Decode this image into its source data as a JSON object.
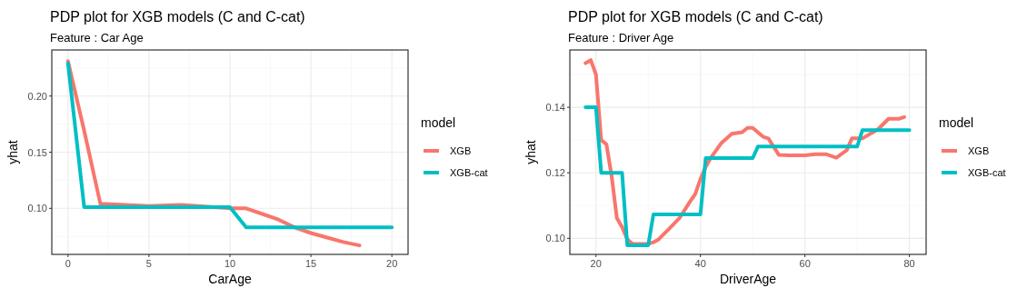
{
  "chart_data": [
    {
      "type": "line",
      "title": "PDP plot for XGB models (C and C-cat)",
      "subtitle": "Feature : Car Age",
      "xlabel": "CarAge",
      "ylabel": "yhat",
      "legend_title": "model",
      "legend": "right",
      "grid": true,
      "line_style": "solid",
      "xlim": [
        -1,
        21
      ],
      "xticks": [
        0,
        5,
        10,
        15,
        20
      ],
      "ylim": [
        0.059,
        0.241
      ],
      "yticks": [
        {
          "value": 0.1,
          "label": "0.10"
        },
        {
          "value": 0.15,
          "label": "0.15"
        },
        {
          "value": 0.2,
          "label": "0.20"
        }
      ],
      "series": [
        {
          "name": "XGB",
          "color": "#f8766d",
          "x": [
            0,
            1,
            2,
            5,
            7,
            9,
            10,
            11,
            12,
            13,
            14,
            15,
            16,
            17,
            18
          ],
          "values": [
            0.231,
            0.169,
            0.104,
            0.102,
            0.103,
            0.101,
            0.1,
            0.1,
            0.095,
            0.09,
            0.083,
            0.078,
            0.074,
            0.07,
            0.067
          ]
        },
        {
          "name": "XGB-cat",
          "color": "#00bfc4",
          "x": [
            0,
            1,
            10,
            11,
            20
          ],
          "values": [
            0.229,
            0.101,
            0.101,
            0.083,
            0.083
          ]
        }
      ]
    },
    {
      "type": "line",
      "title": "PDP plot for XGB models (C and C-cat)",
      "subtitle": "Feature : Driver Age",
      "xlabel": "DriverAge",
      "ylabel": "yhat",
      "legend_title": "model",
      "legend": "right",
      "grid": true,
      "line_style": "solid",
      "xlim": [
        15,
        83.2
      ],
      "xticks": [
        20,
        40,
        60,
        80
      ],
      "ylim": [
        0.0951,
        0.1575
      ],
      "yticks": [
        {
          "value": 0.1,
          "label": "0.10"
        },
        {
          "value": 0.12,
          "label": "0.12"
        },
        {
          "value": 0.14,
          "label": "0.14"
        }
      ],
      "series": [
        {
          "name": "XGB",
          "color": "#f8766d",
          "x": [
            18,
            19,
            20,
            21,
            22,
            23,
            24,
            25,
            26,
            27,
            30,
            31,
            32,
            34,
            36,
            38,
            39,
            40,
            41,
            42,
            44,
            46,
            48,
            49,
            50,
            52,
            53,
            55,
            57,
            60,
            62,
            64,
            66,
            68,
            69,
            71,
            74,
            76,
            78,
            79
          ],
          "values": [
            0.1535,
            0.1544,
            0.15,
            0.13,
            0.1287,
            0.119,
            0.1062,
            0.1034,
            0.0997,
            0.0983,
            0.0983,
            0.0988,
            0.0997,
            0.1029,
            0.1062,
            0.1112,
            0.1135,
            0.1181,
            0.1218,
            0.1246,
            0.1291,
            0.1319,
            0.1324,
            0.1337,
            0.1337,
            0.131,
            0.1305,
            0.1255,
            0.1253,
            0.1253,
            0.1257,
            0.1257,
            0.1246,
            0.1269,
            0.1305,
            0.1305,
            0.1333,
            0.1365,
            0.1365,
            0.137
          ]
        },
        {
          "name": "XGB-cat",
          "color": "#00bfc4",
          "x": [
            18,
            20,
            21,
            25,
            26,
            30,
            31,
            40,
            41,
            50,
            51,
            70,
            71,
            80
          ],
          "values": [
            0.14,
            0.14,
            0.12,
            0.12,
            0.0979,
            0.0979,
            0.1073,
            0.1073,
            0.1245,
            0.1245,
            0.128,
            0.128,
            0.133,
            0.133
          ]
        }
      ]
    }
  ]
}
